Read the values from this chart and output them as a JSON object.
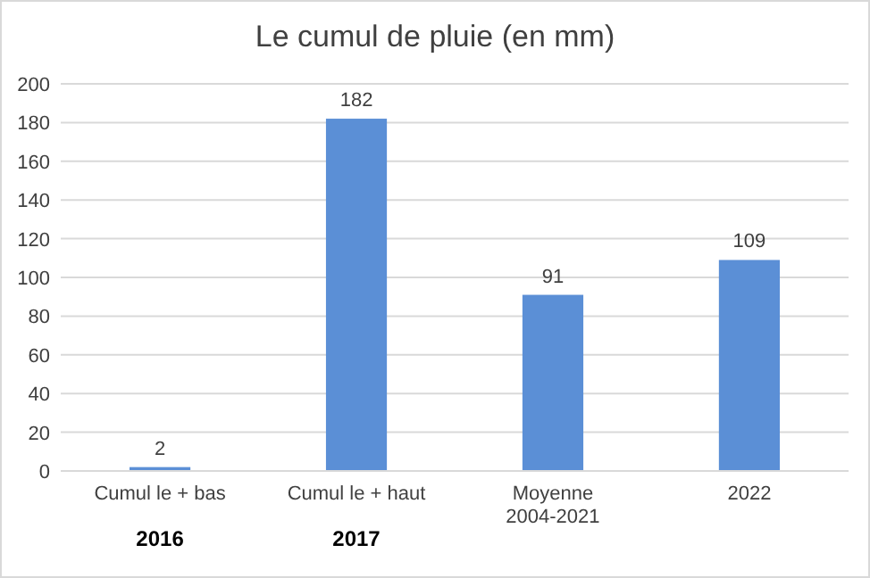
{
  "chart_data": {
    "type": "bar",
    "title": "Le cumul de pluie (en mm)",
    "categories": [
      "Cumul le + bas",
      "Cumul le + haut",
      "Moyenne\n2004-2021",
      "2022"
    ],
    "values": [
      2,
      182,
      91,
      109
    ],
    "color": "#5b8fd6",
    "ylim": [
      0,
      200
    ],
    "yticks": [
      0,
      20,
      40,
      60,
      80,
      100,
      120,
      140,
      160,
      180,
      200
    ],
    "grid": "y",
    "data_labels": true,
    "annotations": [
      "2016",
      "2017"
    ]
  }
}
